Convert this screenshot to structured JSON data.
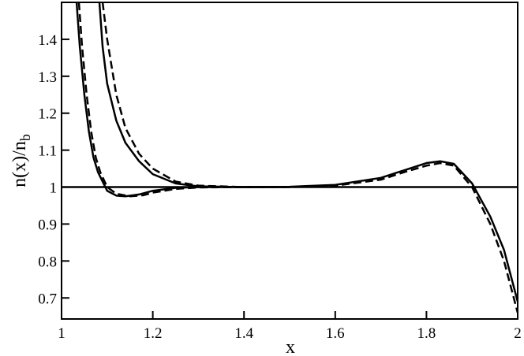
{
  "chart_data": {
    "type": "line",
    "x_label": "x",
    "y_label": "n(x)/n",
    "y_label_sub": "b",
    "xlim": [
      1,
      2
    ],
    "ylim": [
      0.643,
      1.5
    ],
    "xticks": [
      1,
      1.2,
      1.4,
      1.6,
      1.8,
      2
    ],
    "yticks": [
      0.7,
      0.8,
      0.9,
      1,
      1.1,
      1.2,
      1.3,
      1.4
    ],
    "reference_line": 1,
    "series": [
      {
        "color": "#000000",
        "dash": false,
        "x": [
          1.033,
          1.04,
          1.05,
          1.06,
          1.07,
          1.08,
          1.1,
          1.12,
          1.14,
          1.17,
          1.2,
          1.25,
          1.3,
          1.4,
          1.5,
          1.6,
          1.7,
          1.75,
          1.8,
          1.83,
          1.86,
          1.9,
          1.94,
          1.97,
          2.0
        ],
        "values": [
          1.5,
          1.38,
          1.25,
          1.15,
          1.08,
          1.04,
          0.99,
          0.977,
          0.975,
          0.98,
          0.99,
          0.998,
          1.0,
          1.0,
          1.001,
          1.006,
          1.025,
          1.045,
          1.065,
          1.07,
          1.063,
          1.01,
          0.92,
          0.83,
          0.69
        ]
      },
      {
        "color": "#000000",
        "dash": true,
        "x": [
          1.038,
          1.045,
          1.055,
          1.065,
          1.075,
          1.085,
          1.1,
          1.12,
          1.15,
          1.18,
          1.2,
          1.25,
          1.3,
          1.4,
          1.5,
          1.6,
          1.7,
          1.75,
          1.8,
          1.83,
          1.86,
          1.9,
          1.94,
          1.97,
          2.0
        ],
        "values": [
          1.5,
          1.38,
          1.25,
          1.15,
          1.08,
          1.04,
          1.0,
          0.982,
          0.975,
          0.978,
          0.985,
          0.995,
          0.999,
          1.0,
          1.0,
          1.004,
          1.02,
          1.04,
          1.058,
          1.065,
          1.058,
          1.0,
          0.9,
          0.8,
          0.66
        ]
      },
      {
        "color": "#000000",
        "dash": false,
        "x": [
          1.083,
          1.09,
          1.1,
          1.12,
          1.14,
          1.17,
          1.2,
          1.25,
          1.3,
          1.4,
          1.5
        ],
        "values": [
          1.5,
          1.38,
          1.28,
          1.18,
          1.12,
          1.07,
          1.035,
          1.01,
          1.002,
          1.0,
          1.0
        ]
      },
      {
        "color": "#000000",
        "dash": true,
        "x": [
          1.09,
          1.1,
          1.12,
          1.14,
          1.17,
          1.2,
          1.25,
          1.3,
          1.4,
          1.5
        ],
        "values": [
          1.5,
          1.4,
          1.25,
          1.16,
          1.09,
          1.05,
          1.015,
          1.004,
          1.0,
          1.0
        ]
      }
    ]
  }
}
